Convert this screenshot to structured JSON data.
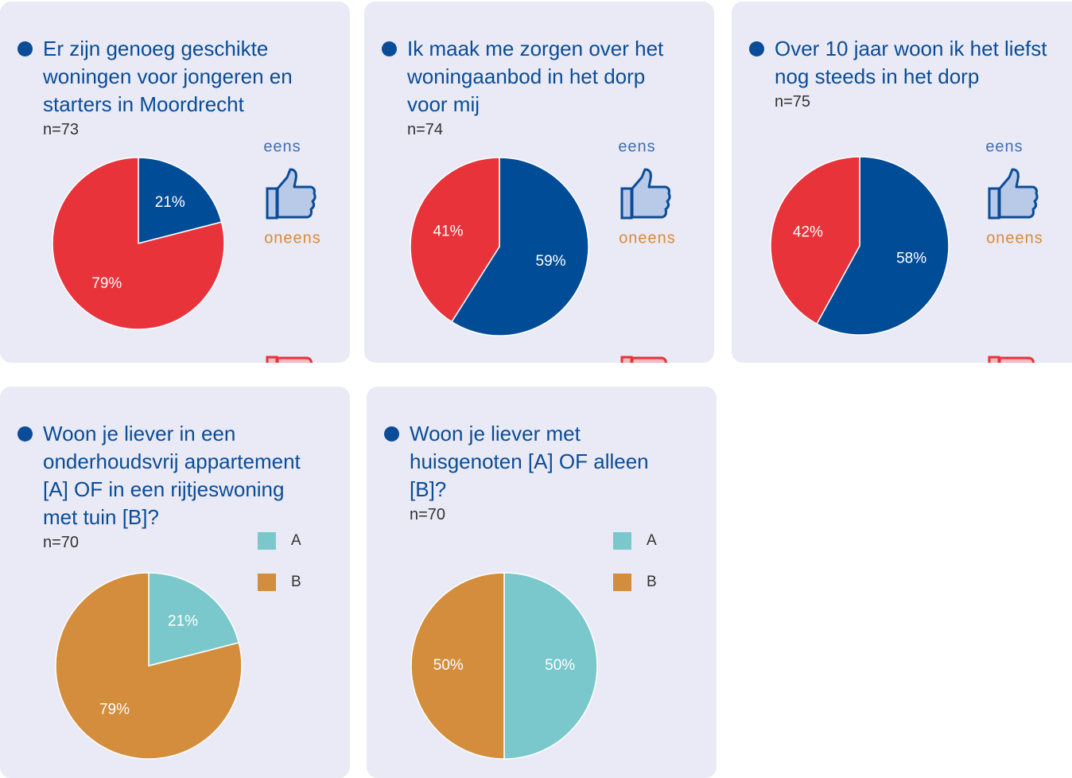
{
  "chart_data": [
    {
      "type": "pie",
      "title": "Er zijn genoeg geschikte woningen voor jongeren en starters in Moordrecht",
      "subtitle": "n=73",
      "categories": [
        "eens",
        "oneens"
      ],
      "values": [
        21,
        79
      ],
      "value_labels": [
        "21%",
        "79%"
      ],
      "colors": [
        "#004c97",
        "#e8333a"
      ],
      "legend_style": "thumbs"
    },
    {
      "type": "pie",
      "title": "Ik maak me zorgen over het woningaanbod in het dorp voor mij",
      "subtitle": "n=74",
      "categories": [
        "eens",
        "oneens"
      ],
      "values": [
        59,
        41
      ],
      "value_labels": [
        "59%",
        "41%"
      ],
      "colors": [
        "#004c97",
        "#e8333a"
      ],
      "legend_style": "thumbs"
    },
    {
      "type": "pie",
      "title": "Over 10 jaar woon ik het liefst nog steeds in het dorp",
      "subtitle": "n=75",
      "categories": [
        "eens",
        "oneens"
      ],
      "values": [
        58,
        42
      ],
      "value_labels": [
        "58%",
        "42%"
      ],
      "colors": [
        "#004c97",
        "#e8333a"
      ],
      "legend_style": "thumbs"
    },
    {
      "type": "pie",
      "title": "Woon je liever in een onderhoudsvrij appartement [A] OF in een rijtjeswoning met tuin [B]?",
      "subtitle": "n=70",
      "categories": [
        "A",
        "B"
      ],
      "values": [
        21,
        79
      ],
      "value_labels": [
        "21%",
        "79%"
      ],
      "colors": [
        "#7ac8cc",
        "#d38d3c"
      ],
      "legend_style": "swatches"
    },
    {
      "type": "pie",
      "title": "Woon je liever met huisgenoten [A] OF alleen [B]?",
      "subtitle": "n=70",
      "categories": [
        "A",
        "B"
      ],
      "values": [
        50,
        50
      ],
      "value_labels": [
        "50%",
        "50%"
      ],
      "colors": [
        "#7ac8cc",
        "#d38d3c"
      ],
      "legend_style": "swatches"
    }
  ]
}
